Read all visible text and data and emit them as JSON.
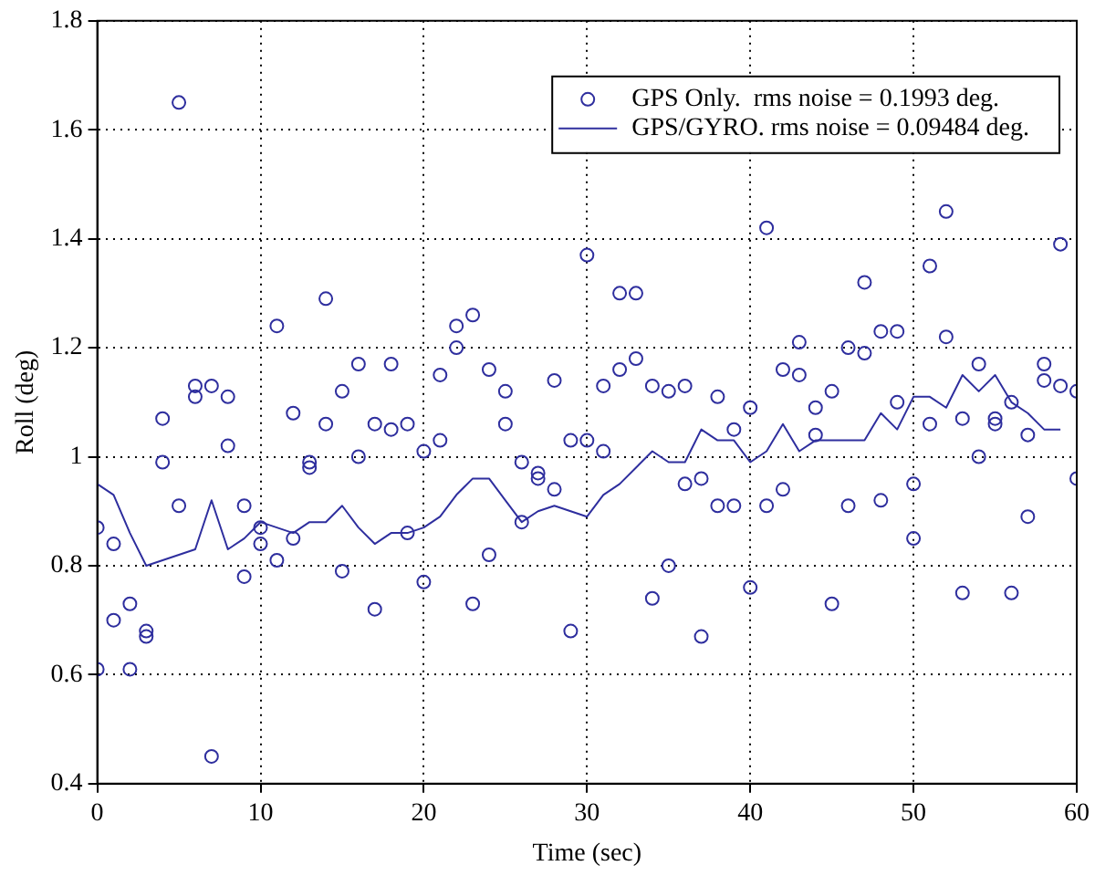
{
  "chart_data": {
    "type": "scatter",
    "xlabel": "Time (sec)",
    "ylabel": "Roll (deg)",
    "xlim": [
      0,
      60
    ],
    "ylim": [
      0.4,
      1.8
    ],
    "xticks": [
      0,
      10,
      20,
      30,
      40,
      50,
      60
    ],
    "yticks": [
      0.4,
      0.6,
      0.8,
      1,
      1.2,
      1.4,
      1.6,
      1.8
    ],
    "grid": true,
    "legend": "top right",
    "series": [
      {
        "name": "GPS Only.  rms noise = 0.1993 deg.",
        "marker": "circle",
        "color": "#2e2e9e",
        "x": [
          0,
          0,
          1,
          1,
          2,
          2,
          3,
          3,
          4,
          4,
          5,
          5,
          6,
          6,
          7,
          7,
          8,
          8,
          9,
          9,
          10,
          10,
          11,
          11,
          12,
          12,
          13,
          13,
          14,
          14,
          15,
          15,
          16,
          16,
          17,
          17,
          18,
          18,
          19,
          19,
          20,
          20,
          21,
          21,
          22,
          22,
          23,
          23,
          24,
          24,
          25,
          25,
          26,
          26,
          27,
          27,
          28,
          28,
          29,
          29,
          30,
          30,
          31,
          31,
          32,
          32,
          33,
          33,
          34,
          34,
          35,
          35,
          36,
          36,
          37,
          37,
          38,
          38,
          39,
          39,
          40,
          40,
          41,
          41,
          42,
          42,
          43,
          43,
          44,
          44,
          45,
          45,
          46,
          46,
          47,
          47,
          48,
          48,
          49,
          49,
          50,
          50,
          51,
          51,
          52,
          52,
          53,
          53,
          54,
          54,
          55,
          55,
          56,
          56,
          57,
          57,
          58,
          58,
          59,
          59,
          60,
          60
        ],
        "values": [
          0.87,
          0.61,
          0.84,
          0.7,
          0.73,
          0.61,
          0.68,
          0.67,
          1.07,
          0.99,
          1.65,
          0.91,
          1.13,
          1.11,
          1.13,
          0.45,
          1.11,
          1.02,
          0.91,
          0.78,
          0.87,
          0.84,
          1.24,
          0.81,
          1.08,
          0.85,
          0.99,
          0.98,
          1.29,
          1.06,
          1.12,
          0.79,
          1.17,
          1,
          1.06,
          0.72,
          1.17,
          1.05,
          1.06,
          0.86,
          1.01,
          0.77,
          1.15,
          1.03,
          1.24,
          1.2,
          1.26,
          0.73,
          1.16,
          0.82,
          1.12,
          1.06,
          0.99,
          0.88,
          0.97,
          0.96,
          1.14,
          0.94,
          1.03,
          0.68,
          1.37,
          1.03,
          1.01,
          1.13,
          1.3,
          1.16,
          1.3,
          1.18,
          1.13,
          0.74,
          1.12,
          0.8,
          1.13,
          0.95,
          0.96,
          0.67,
          1.11,
          0.91,
          1.05,
          0.91,
          1.09,
          0.76,
          1.42,
          0.91,
          1.16,
          0.94,
          1.21,
          1.15,
          1.09,
          1.04,
          1.12,
          0.73,
          1.2,
          0.91,
          1.32,
          1.19,
          1.23,
          0.92,
          1.23,
          1.1,
          0.95,
          0.85,
          1.35,
          1.06,
          1.45,
          1.22,
          1.07,
          0.75,
          1.17,
          1,
          1.07,
          1.06,
          1.1,
          0.75,
          1.04,
          0.89,
          1.17,
          1.14,
          1.39,
          1.13,
          1.12,
          0.96
        ]
      },
      {
        "name": "GPS/GYRO. rms noise = 0.09484 deg.",
        "type": "line",
        "marker": "none",
        "color": "#2e2e9e",
        "x": [
          0,
          1,
          2,
          3,
          4,
          5,
          6,
          7,
          8,
          9,
          10,
          11,
          12,
          13,
          14,
          15,
          16,
          17,
          18,
          19,
          20,
          21,
          22,
          23,
          24,
          25,
          26,
          27,
          28,
          29,
          30,
          31,
          32,
          33,
          34,
          35,
          36,
          37,
          38,
          39,
          40,
          41,
          42,
          43,
          44,
          45,
          46,
          47,
          48,
          49,
          50,
          51,
          52,
          53,
          54,
          55,
          56,
          57,
          58,
          59
        ],
        "values": [
          0.95,
          0.93,
          0.86,
          0.8,
          0.81,
          0.82,
          0.83,
          0.92,
          0.83,
          0.85,
          0.88,
          0.87,
          0.86,
          0.88,
          0.88,
          0.91,
          0.87,
          0.84,
          0.86,
          0.86,
          0.87,
          0.89,
          0.93,
          0.96,
          0.96,
          0.92,
          0.88,
          0.9,
          0.91,
          0.9,
          0.89,
          0.93,
          0.95,
          0.98,
          1.01,
          0.99,
          0.99,
          1.05,
          1.03,
          1.03,
          0.99,
          1.01,
          1.06,
          1.01,
          1.03,
          1.03,
          1.03,
          1.03,
          1.08,
          1.05,
          1.11,
          1.11,
          1.09,
          1.15,
          1.12,
          1.15,
          1.1,
          1.08,
          1.05,
          1.05
        ]
      }
    ]
  }
}
